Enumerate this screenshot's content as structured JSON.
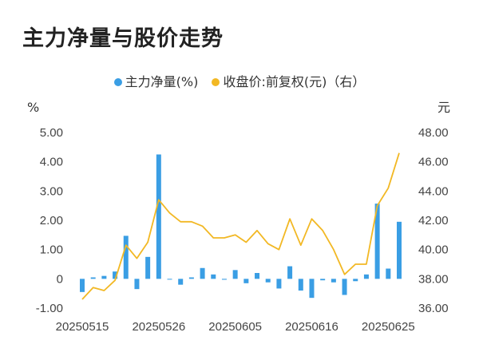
{
  "title": "主力净量与股价走势",
  "legend": {
    "series1": "主力净量(%)",
    "series2": "收盘价:前复权(元)（右）"
  },
  "colors": {
    "bar": "#3a9ee4",
    "line": "#f2b824",
    "axis_text": "#444444"
  },
  "chart_data": {
    "type": "bar",
    "left_axis": {
      "unit": "%",
      "ylim": [
        -1.0,
        5.0
      ],
      "ticks": [
        "5.00",
        "4.00",
        "3.00",
        "2.00",
        "1.00",
        "0",
        "-1.00"
      ]
    },
    "right_axis": {
      "unit": "元",
      "ylim": [
        36.0,
        48.0
      ],
      "ticks": [
        "48.00",
        "46.00",
        "44.00",
        "42.00",
        "40.00",
        "38.00",
        "36.00"
      ]
    },
    "x_tick_labels": [
      "20250515",
      "20250526",
      "20250605",
      "20250616",
      "20250625"
    ],
    "x_tick_index": [
      0,
      7,
      14,
      21,
      28
    ],
    "series": [
      {
        "name": "主力净量(%)",
        "type": "bar",
        "axis": "left",
        "values": [
          -0.45,
          0.05,
          0.1,
          0.25,
          1.47,
          -0.35,
          0.75,
          4.25,
          -0.02,
          -0.2,
          0.05,
          0.37,
          0.15,
          -0.03,
          0.3,
          -0.15,
          0.2,
          -0.12,
          -0.33,
          0.43,
          -0.4,
          -0.65,
          -0.05,
          -0.12,
          -0.55,
          -0.08,
          0.15,
          2.57,
          0.35,
          1.95
        ]
      },
      {
        "name": "收盘价:前复权(元)（右）",
        "type": "line",
        "axis": "right",
        "values": [
          36.6,
          37.4,
          37.2,
          37.9,
          40.3,
          39.4,
          40.5,
          43.4,
          42.5,
          41.9,
          41.9,
          41.6,
          40.8,
          40.8,
          41.0,
          40.5,
          41.3,
          40.4,
          40.0,
          42.1,
          40.3,
          42.1,
          41.3,
          40.0,
          38.3,
          39.0,
          39.0,
          43.0,
          44.2,
          46.6
        ]
      }
    ],
    "grid": false
  }
}
